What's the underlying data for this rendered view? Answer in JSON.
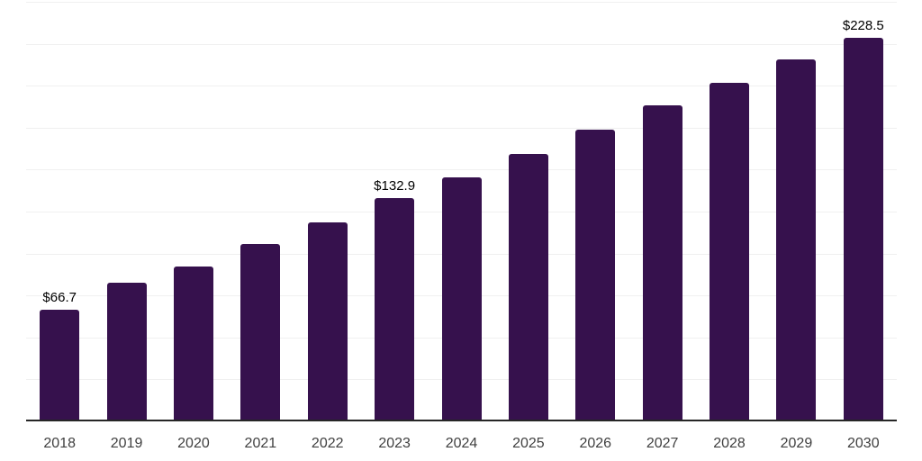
{
  "chart_data": {
    "type": "bar",
    "title": "",
    "xlabel": "",
    "ylabel": "",
    "categories": [
      "2018",
      "2019",
      "2020",
      "2021",
      "2022",
      "2023",
      "2024",
      "2025",
      "2026",
      "2027",
      "2028",
      "2029",
      "2030"
    ],
    "values": [
      66.7,
      82.6,
      92.3,
      105.7,
      118.6,
      132.9,
      145.4,
      159.5,
      173.7,
      188.5,
      201.9,
      215.7,
      228.5
    ],
    "annotations": [
      {
        "index": 0,
        "label": "$66.7"
      },
      {
        "index": 5,
        "label": "$132.9"
      },
      {
        "index": 12,
        "label": "$228.5"
      }
    ],
    "ylim": [
      0,
      250
    ],
    "gridline_step": 25,
    "grid": true,
    "legend": false,
    "colors": {
      "bar": "#36114D",
      "axis_line": "#262626",
      "gridline": "#f0f0f0",
      "tick_label": "#404040",
      "annotation_text": "#000000",
      "background": "#ffffff"
    }
  }
}
